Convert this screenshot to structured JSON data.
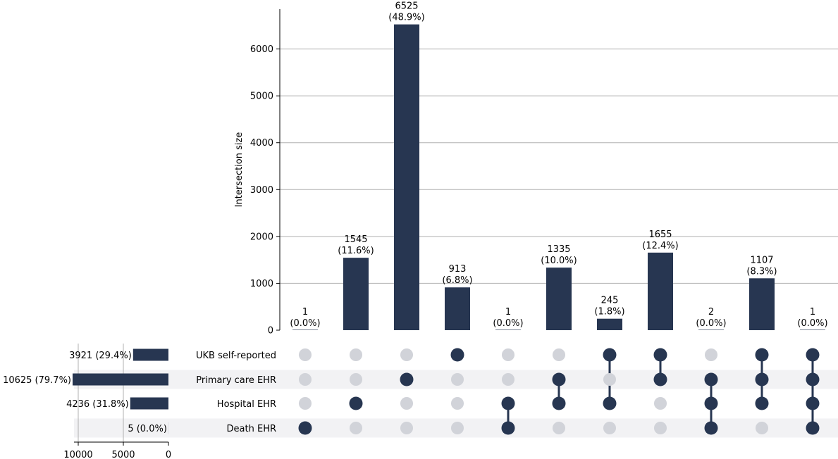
{
  "colors": {
    "bar": "#273651",
    "dot_active": "#273651",
    "dot_inactive": "#d1d3d9",
    "row_stripe": "#f2f2f4",
    "grid": "#b0b0b0",
    "axis": "#000000"
  },
  "chart_data": {
    "type": "upset",
    "ylabel": "Intersection size",
    "y_ticks": [
      0,
      1000,
      2000,
      3000,
      4000,
      5000,
      6000
    ],
    "ylim": [
      0,
      6850
    ],
    "sets": [
      {
        "name": "UKB self-reported",
        "size": 3921,
        "label": "3921 (29.4%)"
      },
      {
        "name": "Primary care EHR",
        "size": 10625,
        "label": "10625 (79.7%)"
      },
      {
        "name": "Hospital EHR",
        "size": 4236,
        "label": "4236 (31.8%)"
      },
      {
        "name": "Death EHR",
        "size": 5,
        "label": "5 (0.0%)"
      }
    ],
    "set_size_ticks": [
      10000,
      5000,
      0
    ],
    "set_size_max": 10625,
    "intersections": [
      {
        "value": 1,
        "count_label": "1",
        "pct_label": "(0.0%)",
        "members": [
          3
        ]
      },
      {
        "value": 1545,
        "count_label": "1545",
        "pct_label": "(11.6%)",
        "members": [
          2
        ]
      },
      {
        "value": 6525,
        "count_label": "6525",
        "pct_label": "(48.9%)",
        "members": [
          1
        ]
      },
      {
        "value": 913,
        "count_label": "913",
        "pct_label": "(6.8%)",
        "members": [
          0
        ]
      },
      {
        "value": 1,
        "count_label": "1",
        "pct_label": "(0.0%)",
        "members": [
          2,
          3
        ]
      },
      {
        "value": 1335,
        "count_label": "1335",
        "pct_label": "(10.0%)",
        "members": [
          1,
          2
        ]
      },
      {
        "value": 245,
        "count_label": "245",
        "pct_label": "(1.8%)",
        "members": [
          0,
          2
        ]
      },
      {
        "value": 1655,
        "count_label": "1655",
        "pct_label": "(12.4%)",
        "members": [
          0,
          1
        ]
      },
      {
        "value": 2,
        "count_label": "2",
        "pct_label": "(0.0%)",
        "members": [
          1,
          2,
          3
        ]
      },
      {
        "value": 1107,
        "count_label": "1107",
        "pct_label": "(8.3%)",
        "members": [
          0,
          1,
          2
        ]
      },
      {
        "value": 1,
        "count_label": "1",
        "pct_label": "(0.0%)",
        "members": [
          0,
          1,
          2,
          3
        ]
      }
    ]
  }
}
